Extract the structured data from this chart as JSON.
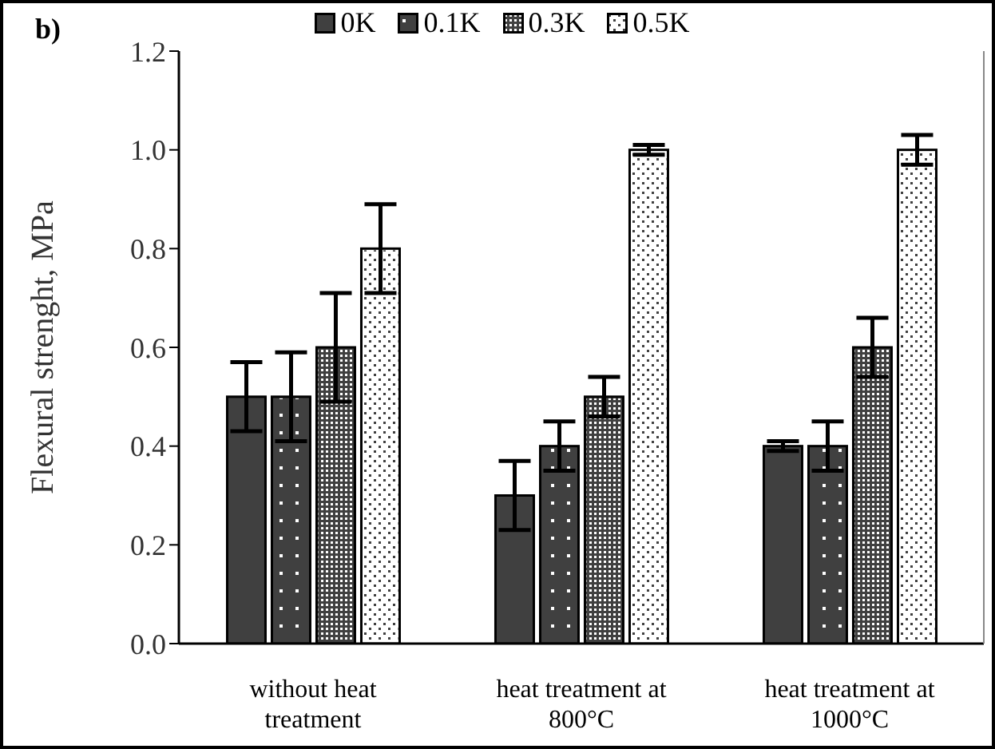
{
  "chart_data": {
    "type": "bar",
    "title": "b)",
    "ylabel": "Flexural strenght, MPa",
    "categories": [
      "without heat treatment",
      "heat treatment at 800°C",
      "heat treatment at 1000°C"
    ],
    "series": [
      {
        "name": "0K",
        "color": "#404040",
        "values": [
          0.5,
          0.3,
          0.4
        ],
        "errors": [
          0.07,
          0.07,
          0.01
        ]
      },
      {
        "name": "0.1K",
        "color": "#404040",
        "values": [
          0.5,
          0.4,
          0.4
        ],
        "errors": [
          0.09,
          0.05,
          0.05
        ]
      },
      {
        "name": "0.3K",
        "color": "#404040",
        "values": [
          0.6,
          0.5,
          0.6
        ],
        "errors": [
          0.11,
          0.04,
          0.06
        ]
      },
      {
        "name": "0.5K",
        "color": "#ffffff",
        "values": [
          0.8,
          1.0,
          1.0
        ],
        "errors": [
          0.09,
          0.01,
          0.03
        ]
      }
    ],
    "ylim": [
      0,
      1.2
    ],
    "yticks": [
      {
        "value": 0,
        "label": "0.0"
      },
      {
        "value": 0.2,
        "label": "0.2"
      },
      {
        "value": 0.4,
        "label": "0.4"
      },
      {
        "value": 0.6,
        "label": "0.6"
      },
      {
        "value": 0.8,
        "label": "0.8"
      },
      {
        "value": 1,
        "label": "1.0"
      },
      {
        "value": 1.2,
        "label": "1.2"
      }
    ],
    "legend": "top",
    "grid": false
  }
}
